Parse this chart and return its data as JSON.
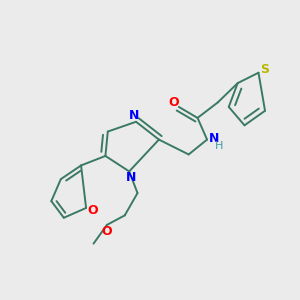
{
  "background_color": "#ebebeb",
  "bond_color": "#3a7a65",
  "atoms": {
    "S": {
      "color": "#b8b800"
    },
    "O": {
      "color": "#ff0000"
    },
    "N": {
      "color": "#0000ff"
    },
    "H": {
      "color": "#4499aa"
    }
  },
  "figsize": [
    3.0,
    3.0
  ],
  "dpi": 100
}
